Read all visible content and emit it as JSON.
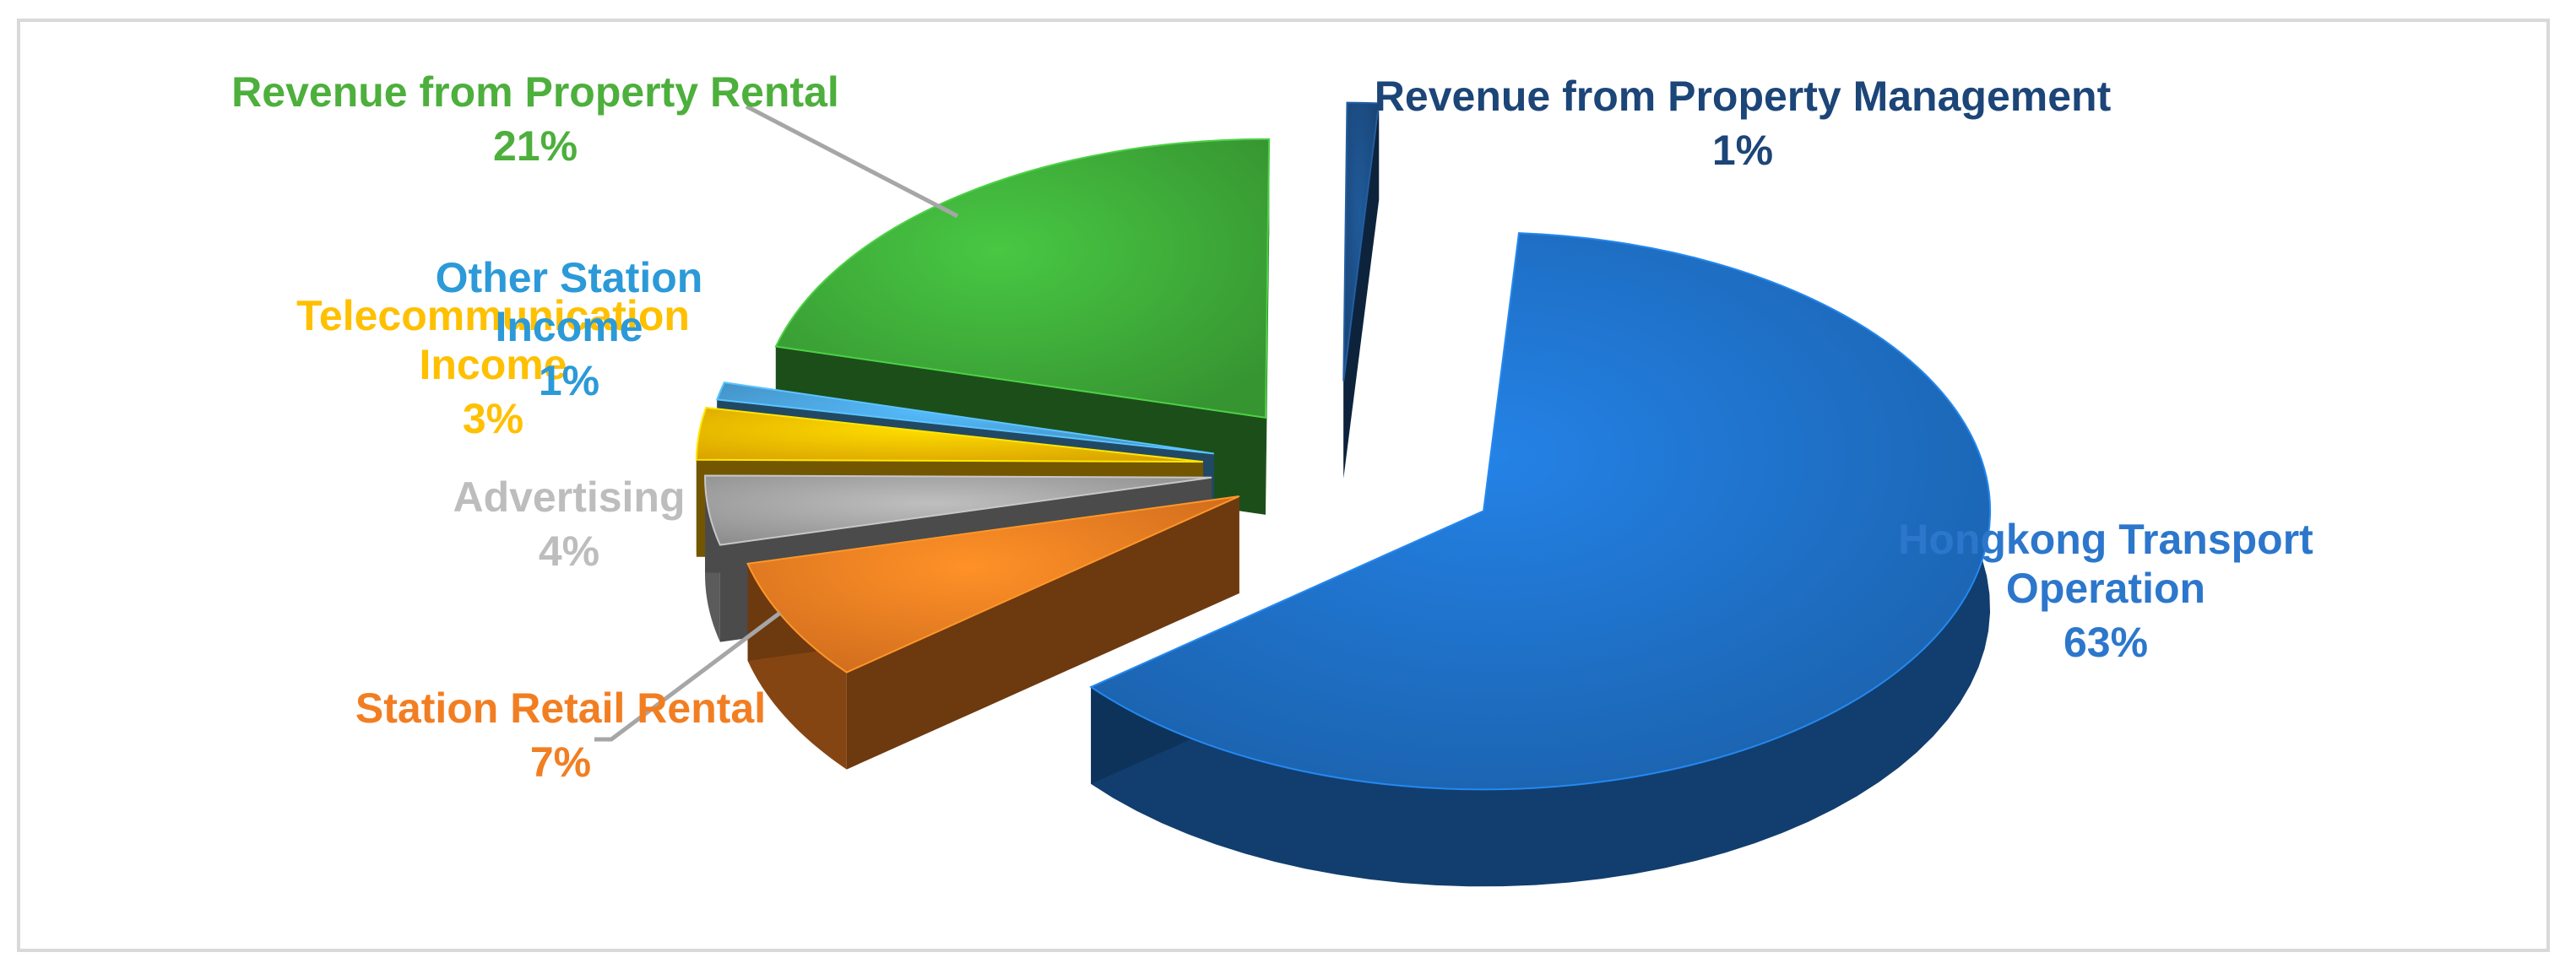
{
  "chart_data": {
    "type": "pie",
    "style": "3d-exploded",
    "slices": [
      {
        "label": "Hongkong Transport Operation",
        "label_lines": [
          "Hongkong Transport",
          "Operation"
        ],
        "value": 63,
        "value_label": "63%",
        "color": "#1F71C8",
        "label_color": "#2C77CC"
      },
      {
        "label": "Station Retail Rental",
        "label_lines": [
          "Station Retail Rental"
        ],
        "value": 7,
        "value_label": "7%",
        "color": "#F27E22",
        "label_color": "#F27E22"
      },
      {
        "label": "Advertising",
        "label_lines": [
          "Advertising"
        ],
        "value": 4,
        "value_label": "4%",
        "color": "#A6A6A6",
        "label_color": "#BDBDBD"
      },
      {
        "label": "Telecommunication Income",
        "label_lines": [
          "Telecommunication",
          "Income"
        ],
        "value": 3,
        "value_label": "3%",
        "color": "#FFC000",
        "label_color": "#FFC000"
      },
      {
        "label": "Other Station Income",
        "label_lines": [
          "Other Station",
          "Income"
        ],
        "value": 1,
        "value_label": "1%",
        "color": "#4BA3DC",
        "label_color": "#2C9AD8"
      },
      {
        "label": "Revenue from Property Rental",
        "label_lines": [
          "Revenue from Property Rental"
        ],
        "value": 21,
        "value_label": "21%",
        "color": "#3FAE3A",
        "label_color": "#4DAF3C"
      },
      {
        "label": "Revenue from Property Management",
        "label_lines": [
          "Revenue from Property Management"
        ],
        "value": 1,
        "value_label": "1%",
        "color": "#1C4E86",
        "label_color": "#1C4578"
      }
    ]
  }
}
